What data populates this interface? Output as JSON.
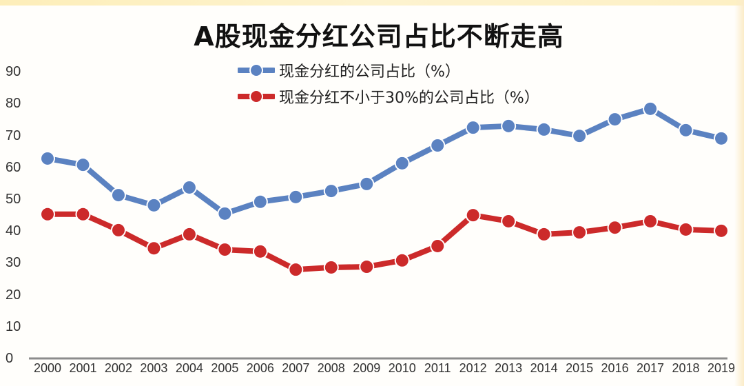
{
  "chart_data": {
    "type": "line",
    "title": "A股现金分红公司占比不断走高",
    "xlabel": "",
    "ylabel": "",
    "ylim": [
      0,
      90
    ],
    "yticks": [
      0,
      10,
      20,
      30,
      40,
      50,
      60,
      70,
      80,
      90
    ],
    "grid": false,
    "legend_position": "top-center",
    "x": [
      "2000",
      "2001",
      "2002",
      "2003",
      "2004",
      "2005",
      "2006",
      "2007",
      "2008",
      "2009",
      "2010",
      "2011",
      "2012",
      "2013",
      "2014",
      "2015",
      "2016",
      "2017",
      "2018",
      "2019"
    ],
    "series": [
      {
        "name": "现金分红的公司占比（%）",
        "color": "#5b82c1",
        "values": [
          63.0,
          61.0,
          51.5,
          48.3,
          53.9,
          45.7,
          49.4,
          50.9,
          52.8,
          55.0,
          61.5,
          67.1,
          72.7,
          73.2,
          72.1,
          70.1,
          75.3,
          78.6,
          71.9,
          69.3
        ]
      },
      {
        "name": "现金分红不小于30%的公司占比（%）",
        "color": "#cc2a2a",
        "values": [
          45.5,
          45.5,
          40.5,
          34.8,
          39.2,
          34.4,
          33.8,
          28.1,
          28.8,
          29.0,
          31.0,
          35.5,
          45.2,
          43.3,
          39.2,
          39.8,
          41.3,
          43.3,
          40.7,
          40.3
        ]
      }
    ]
  },
  "colors": {
    "axis": "#8c8c8c",
    "background": "#fffefb"
  }
}
